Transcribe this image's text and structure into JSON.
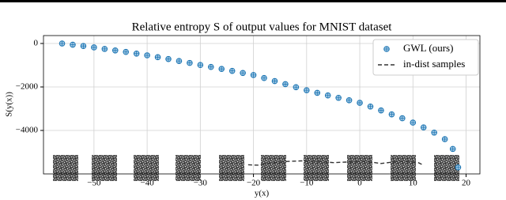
{
  "chart_data": {
    "type": "scatter",
    "title": "Relative entropy S of output values for MNIST dataset",
    "x_label": "y(x)",
    "y_label": "S(y(x))",
    "xlim": [
      -59.5,
      22.6
    ],
    "ylim": [
      -6000,
      364
    ],
    "xticks": [
      {
        "value": -50,
        "label": "−50"
      },
      {
        "value": -40,
        "label": "−40"
      },
      {
        "value": -30,
        "label": "−30"
      },
      {
        "value": -20,
        "label": "−20"
      },
      {
        "value": -10,
        "label": "−10"
      },
      0,
      10,
      20
    ],
    "yticks": [
      0,
      {
        "value": -2000,
        "label": "−2000"
      },
      {
        "value": -4000,
        "label": "−4000"
      }
    ],
    "grid": true,
    "legend": "upper right",
    "series": [
      {
        "name": "GWL (ours)",
        "color": "#1f77b4",
        "marker": "circle-plus",
        "x": [
          -56,
          -54,
          -52,
          -50,
          -48,
          -46,
          -44,
          -42,
          -40,
          -38,
          -36,
          -34,
          -32,
          -30,
          -28,
          -26,
          -24,
          -22,
          -20,
          -18,
          -16,
          -14,
          -12,
          -10,
          -8,
          -6,
          -4,
          -2,
          0,
          2,
          4,
          6,
          8,
          10,
          12,
          14,
          16,
          17.5,
          18.5
        ],
        "values": [
          0,
          -55,
          -115,
          -180,
          -250,
          -320,
          -390,
          -465,
          -545,
          -630,
          -715,
          -805,
          -895,
          -990,
          -1080,
          -1170,
          -1260,
          -1355,
          -1450,
          -1590,
          -1730,
          -1870,
          -2010,
          -2150,
          -2270,
          -2390,
          -2500,
          -2610,
          -2730,
          -2900,
          -3080,
          -3260,
          -3440,
          -3640,
          -3860,
          -4100,
          -4400,
          -4850,
          -5700
        ]
      },
      {
        "name": "in-dist samples",
        "color": "#333333",
        "linestyle": "dashed",
        "x": [
          -21,
          -19,
          -17,
          -14,
          -11,
          -8,
          -5,
          -2,
          1,
          4,
          7,
          9,
          11,
          12
        ],
        "values": [
          -5580,
          -5600,
          -5500,
          -5430,
          -5400,
          -5420,
          -5480,
          -5450,
          -5420,
          -5520,
          -5430,
          -5420,
          -5480,
          -5600
        ]
      }
    ]
  }
}
